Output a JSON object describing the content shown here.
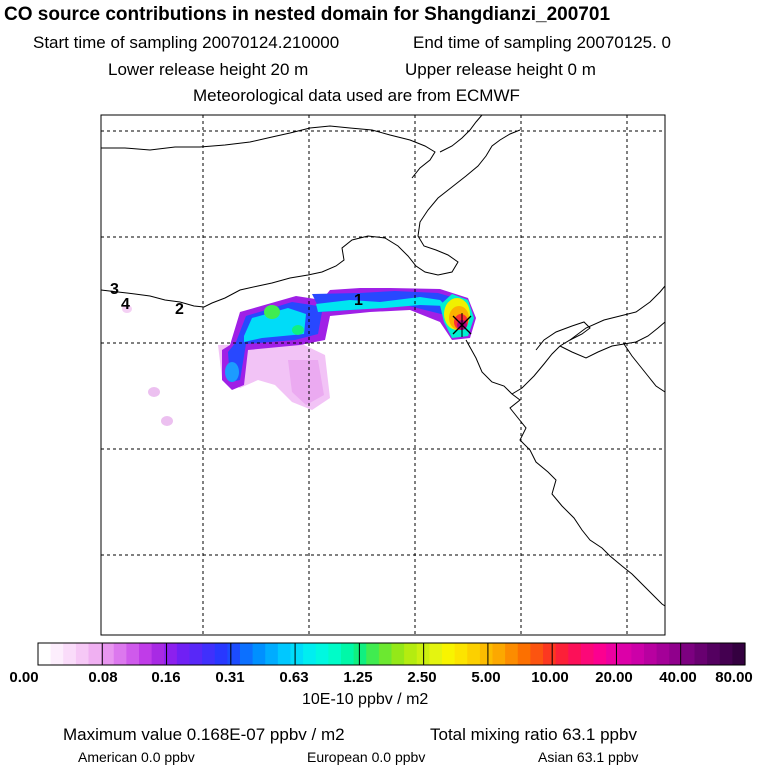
{
  "header": {
    "title": "CO  source contributions in nested domain for Shangdianzi_200701",
    "start_label": "Start time of sampling 20070124.210000",
    "end_label": "End time of sampling 20070125.     0",
    "lower_height": "Lower release height   20 m",
    "upper_height": "Upper release height    0 m",
    "met_data": "Meteorological data used are from ECMWF"
  },
  "map": {
    "region_markers": [
      "1",
      "2",
      "3",
      "4"
    ],
    "receptor_symbol": "×"
  },
  "colorbar": {
    "labels": [
      "0.00",
      "0.08",
      "0.16",
      "0.31",
      "0.63",
      "1.25",
      "2.50",
      "5.00",
      "10.00",
      "20.00",
      "40.00",
      "80.00"
    ],
    "unit": "10E-10 ppbv / m2",
    "colors": [
      "#ffffff",
      "#fdeefd",
      "#fadcfa",
      "#f6c8f6",
      "#f0b0f2",
      "#e896f0",
      "#dc78ee",
      "#cf5aec",
      "#c03ce8",
      "#a82ae4",
      "#8c20ee",
      "#7020f4",
      "#5828f8",
      "#4030fc",
      "#2838ff",
      "#1c4cff",
      "#0c70ff",
      "#0090ff",
      "#00acff",
      "#00c8ff",
      "#00dcfa",
      "#00eef0",
      "#00f8e0",
      "#00fcc8",
      "#00f8a8",
      "#10f080",
      "#40ec50",
      "#6ce830",
      "#94e818",
      "#b4ec10",
      "#ccf010",
      "#e4f410",
      "#f8f400",
      "#fce400",
      "#fcd000",
      "#fcbc00",
      "#fca800",
      "#fc8c00",
      "#fc7000",
      "#fc5410",
      "#fc3820",
      "#fc2038",
      "#fc1058",
      "#fc0878",
      "#fc0090",
      "#ec00a0",
      "#dc00a8",
      "#cc00a8",
      "#b800a0",
      "#a40098",
      "#90008c",
      "#7c0080",
      "#680070",
      "#540060",
      "#440050",
      "#340040"
    ]
  },
  "stats": {
    "max_value": "Maximum value  0.168E-07 ppbv / m2",
    "total": "Total mixing ratio       63.1 ppbv",
    "american": "American       0.0 ppbv",
    "european": "European       0.0 ppbv",
    "asian": "Asian       63.1 ppbv"
  }
}
